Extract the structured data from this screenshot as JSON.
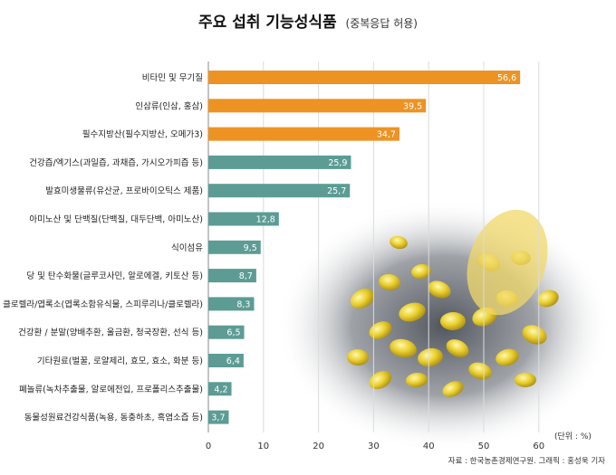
{
  "title": "주요 섭취 기능성식품",
  "subtitle": "(중복응답 허용)",
  "unit_label": "(단위 : %)",
  "source": "자료 : 한국농촌경제연구원. 그래픽 : 홍성욱 기자",
  "colors": {
    "top_group": "#ec9324",
    "other_group": "#5c9c95",
    "grid": "#dcdcdc"
  },
  "chart_data": {
    "type": "bar",
    "orientation": "horizontal",
    "categories": [
      "비타민 및 무기질",
      "인삼류(인삼, 홍삼)",
      "필수지방산(필수지방산, 오메가3)",
      "건강즙/엑기스(과일즙, 과채즙, 가시오가피즙 등)",
      "발효미생물류(유산균, 프로바이오틱스 제품)",
      "아미노산 및 단백질(단백질, 대두단백, 아미노산)",
      "식이섬유",
      "당 및 탄수화물(글루코사민, 알로에겔, 키토산 등)",
      "클로렐라/엽록소(엽록소함유식물, 스피루리나/클로렐라)",
      "건강환 / 분말(양배추환, 울금환, 청국장환, 선식 등)",
      "기타원료(벌꿀, 로얄제리, 효모, 효소, 화분 등)",
      "폐놀류(녹차추출물, 알로에전입, 프로폴리스추출물)",
      "동물성원료건강식품(녹용, 동충하초, 흑염소즙 등)"
    ],
    "values": [
      56.6,
      39.5,
      34.7,
      25.9,
      25.7,
      12.8,
      9.5,
      8.7,
      8.3,
      6.5,
      6.4,
      4.2,
      3.7
    ],
    "value_labels": [
      "56,6",
      "39,5",
      "34,7",
      "25,9",
      "25,7",
      "12,8",
      "9,5",
      "8,7",
      "8,3",
      "6,5",
      "6,4",
      "4,2",
      "3,7"
    ],
    "bar_color_groups": [
      "top",
      "top",
      "top",
      "other",
      "other",
      "other",
      "other",
      "other",
      "other",
      "other",
      "other",
      "other",
      "other"
    ],
    "xlim": [
      0,
      60
    ],
    "xticks": [
      "0",
      "10",
      "20",
      "30",
      "40",
      "50",
      "60"
    ],
    "grid": true
  }
}
